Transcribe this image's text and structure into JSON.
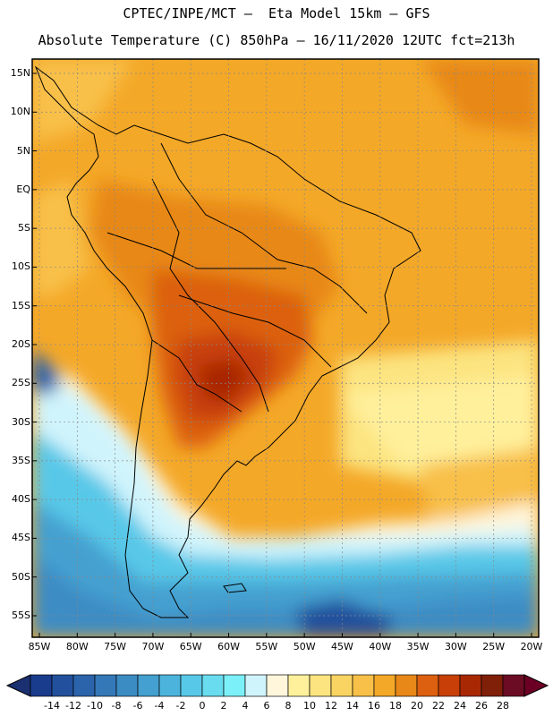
{
  "title_line1": "CPTEC/INPE/MCT –  Eta Model 15km – GFS",
  "title_line2": "Absolute Temperature (C) 850hPa – 16/11/2020 12UTC fct=213h",
  "lat_labels": [
    "15N",
    "10N",
    "5N",
    "EQ",
    "5S",
    "10S",
    "15S",
    "20S",
    "25S",
    "30S",
    "35S",
    "40S",
    "45S",
    "50S",
    "55S"
  ],
  "lat_values": [
    15,
    10,
    5,
    0,
    -5,
    -10,
    -15,
    -20,
    -25,
    -30,
    -35,
    -40,
    -45,
    -50,
    -55
  ],
  "lon_labels": [
    "85W",
    "80W",
    "75W",
    "70W",
    "65W",
    "60W",
    "55W",
    "50W",
    "45W",
    "40W",
    "35W",
    "30W",
    "25W",
    "20W"
  ],
  "lon_values": [
    -85,
    -80,
    -75,
    -70,
    -65,
    -60,
    -55,
    -50,
    -45,
    -40,
    -35,
    -30,
    -25,
    -20
  ],
  "colorbar": {
    "labels": [
      "-14",
      "-12",
      "-10",
      "-8",
      "-6",
      "-4",
      "-2",
      "0",
      "2",
      "4",
      "6",
      "8",
      "10",
      "12",
      "14",
      "16",
      "18",
      "20",
      "22",
      "24",
      "26",
      "28"
    ],
    "colors": [
      "#1a3c8c",
      "#22509c",
      "#2c64ac",
      "#3478b8",
      "#3c8cc4",
      "#44a0d0",
      "#4cb4dc",
      "#58c8e8",
      "#6adcf0",
      "#7cf0f8",
      "#d0f4fc",
      "#fff6dc",
      "#fff09c",
      "#fce480",
      "#fad462",
      "#f8c048",
      "#f4a828",
      "#e88818",
      "#dc6010",
      "#c84008",
      "#a82804",
      "#802008",
      "#6c0c24"
    ],
    "under_color": "#1a3070",
    "over_color": "#6c0024"
  }
}
